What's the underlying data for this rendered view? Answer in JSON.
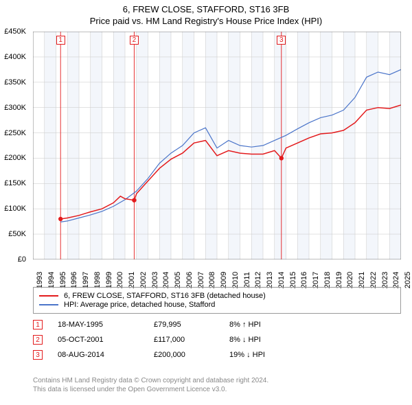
{
  "title": {
    "main": "6, FREW CLOSE, STAFFORD, ST16 3FB",
    "sub": "Price paid vs. HM Land Registry's House Price Index (HPI)"
  },
  "chart": {
    "type": "line",
    "background_color": "#ffffff",
    "band_color": "#f3f6fb",
    "grid_color": "#d0d0d0",
    "axis_color": "#666666",
    "x_range": [
      1993,
      2025
    ],
    "x_ticks": [
      1993,
      1994,
      1995,
      1996,
      1997,
      1998,
      1999,
      2000,
      2001,
      2002,
      2003,
      2004,
      2005,
      2006,
      2007,
      2008,
      2009,
      2010,
      2011,
      2012,
      2013,
      2014,
      2015,
      2016,
      2017,
      2018,
      2019,
      2020,
      2021,
      2022,
      2023,
      2024,
      2025
    ],
    "y_range": [
      0,
      450000
    ],
    "y_ticks": [
      0,
      50000,
      100000,
      150000,
      200000,
      250000,
      300000,
      350000,
      400000,
      450000
    ],
    "y_tick_labels": [
      "£0",
      "£50K",
      "£100K",
      "£150K",
      "£200K",
      "£250K",
      "£300K",
      "£350K",
      "£400K",
      "£450K"
    ],
    "series": [
      {
        "name": "6, FREW CLOSE, STAFFORD, ST16 3FB (detached house)",
        "color": "#e31a1c",
        "width": 1.5,
        "points": [
          [
            1995.4,
            79995
          ],
          [
            1996,
            82000
          ],
          [
            1997,
            87000
          ],
          [
            1998,
            94000
          ],
          [
            1999,
            100000
          ],
          [
            2000,
            112000
          ],
          [
            2000.6,
            125000
          ],
          [
            2001,
            120000
          ],
          [
            2001.8,
            117000
          ],
          [
            2002,
            130000
          ],
          [
            2003,
            155000
          ],
          [
            2004,
            180000
          ],
          [
            2005,
            198000
          ],
          [
            2006,
            210000
          ],
          [
            2007,
            230000
          ],
          [
            2008,
            235000
          ],
          [
            2009,
            205000
          ],
          [
            2010,
            215000
          ],
          [
            2011,
            210000
          ],
          [
            2012,
            208000
          ],
          [
            2013,
            208000
          ],
          [
            2014,
            215000
          ],
          [
            2014.6,
            200000
          ],
          [
            2015,
            220000
          ],
          [
            2016,
            230000
          ],
          [
            2017,
            240000
          ],
          [
            2018,
            248000
          ],
          [
            2019,
            250000
          ],
          [
            2020,
            255000
          ],
          [
            2021,
            270000
          ],
          [
            2022,
            295000
          ],
          [
            2023,
            300000
          ],
          [
            2024,
            298000
          ],
          [
            2025,
            305000
          ]
        ]
      },
      {
        "name": "HPI: Average price, detached house, Stafford",
        "color": "#4a74c9",
        "width": 1.2,
        "points": [
          [
            1995.4,
            74000
          ],
          [
            1996,
            76000
          ],
          [
            1997,
            82000
          ],
          [
            1998,
            88000
          ],
          [
            1999,
            95000
          ],
          [
            2000,
            105000
          ],
          [
            2001,
            118000
          ],
          [
            2002,
            135000
          ],
          [
            2003,
            160000
          ],
          [
            2004,
            190000
          ],
          [
            2005,
            210000
          ],
          [
            2006,
            225000
          ],
          [
            2007,
            250000
          ],
          [
            2008,
            260000
          ],
          [
            2009,
            220000
          ],
          [
            2010,
            235000
          ],
          [
            2011,
            225000
          ],
          [
            2012,
            222000
          ],
          [
            2013,
            225000
          ],
          [
            2014,
            235000
          ],
          [
            2015,
            245000
          ],
          [
            2016,
            258000
          ],
          [
            2017,
            270000
          ],
          [
            2018,
            280000
          ],
          [
            2019,
            285000
          ],
          [
            2020,
            295000
          ],
          [
            2021,
            320000
          ],
          [
            2022,
            360000
          ],
          [
            2023,
            370000
          ],
          [
            2024,
            365000
          ],
          [
            2025,
            375000
          ]
        ]
      }
    ],
    "markers": [
      {
        "n": "1",
        "x": 1995.4,
        "y": 79995,
        "dot": true
      },
      {
        "n": "2",
        "x": 2001.8,
        "y": 117000,
        "dot": true
      },
      {
        "n": "3",
        "x": 2014.6,
        "y": 200000,
        "dot": true
      }
    ],
    "marker_line_color": "#e31a1c",
    "marker_dot_color": "#e31a1c",
    "marker_box_top_offsets": {
      "1": 6,
      "2": 6,
      "3": 6
    }
  },
  "legend": {
    "items": [
      {
        "color": "#e31a1c",
        "label": "6, FREW CLOSE, STAFFORD, ST16 3FB (detached house)"
      },
      {
        "color": "#4a74c9",
        "label": "HPI: Average price, detached house, Stafford"
      }
    ]
  },
  "transactions": [
    {
      "n": "1",
      "date": "18-MAY-1995",
      "price": "£79,995",
      "pct": "8% ↑ HPI"
    },
    {
      "n": "2",
      "date": "05-OCT-2001",
      "price": "£117,000",
      "pct": "8% ↓ HPI"
    },
    {
      "n": "3",
      "date": "08-AUG-2014",
      "price": "£200,000",
      "pct": "19% ↓ HPI"
    }
  ],
  "footer": {
    "line1": "Contains HM Land Registry data © Crown copyright and database right 2024.",
    "line2": "This data is licensed under the Open Government Licence v3.0."
  }
}
